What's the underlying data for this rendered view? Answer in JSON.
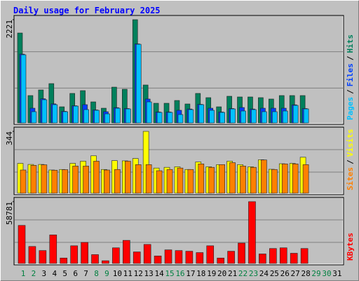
{
  "chart_data": {
    "type": "bar",
    "title": "Daily usage for February 2025",
    "categories": [
      "1",
      "2",
      "3",
      "4",
      "5",
      "6",
      "7",
      "8",
      "9",
      "10",
      "11",
      "12",
      "13",
      "14",
      "15",
      "16",
      "17",
      "18",
      "19",
      "20",
      "21",
      "22",
      "23",
      "24",
      "25",
      "26",
      "27",
      "28",
      "29",
      "30",
      "31"
    ],
    "category_colors": [
      "#008040",
      "#008040",
      "#000000",
      "#000000",
      "#000000",
      "#000000",
      "#000000",
      "#008040",
      "#008040",
      "#000000",
      "#000000",
      "#000000",
      "#000000",
      "#000000",
      "#008040",
      "#008040",
      "#000000",
      "#000000",
      "#000000",
      "#000000",
      "#000000",
      "#008040",
      "#008040",
      "#000000",
      "#000000",
      "#000000",
      "#000000",
      "#000000",
      "#008040",
      "#008040",
      "#000000"
    ],
    "legend_separator": "/",
    "grid": true,
    "panels": [
      {
        "ylim": [
          0,
          2221
        ],
        "yticks": [
          2221
        ],
        "series": [
          {
            "name": "Hits",
            "color": "#00805c",
            "values": [
              1934,
              589,
              710,
              846,
              347,
              635,
              695,
              453,
              317,
              770,
              725,
              2221,
              816,
              423,
              423,
              483,
              408,
              635,
              544,
              347,
              574,
              559,
              559,
              544,
              514,
              589,
              589,
              589,
              null,
              null,
              null
            ]
          },
          {
            "name": "Files",
            "color": "#0040ff",
            "values": [
              1480,
              317,
              520,
              410,
              250,
              370,
              393,
              280,
              242,
              330,
              310,
              1700,
              514,
              235,
              235,
              272,
              300,
              400,
              317,
              235,
              310,
              332,
              300,
              317,
              317,
              317,
              390,
              310,
              null,
              null,
              null
            ]
          },
          {
            "name": "Pages",
            "color": "#00c0ff",
            "values": [
              1466,
              242,
              499,
              393,
              242,
              363,
              287,
              272,
              196,
              317,
              302,
              1692,
              453,
              227,
              227,
              181,
              287,
              393,
              272,
              227,
              302,
              257,
              287,
              242,
              242,
              257,
              378,
              302,
              null,
              null,
              null
            ]
          }
        ]
      },
      {
        "ylim": [
          0,
          344
        ],
        "yticks": [
          344
        ],
        "series": [
          {
            "name": "Visits",
            "color": "#ffff00",
            "values": [
              166,
              160,
              160,
              129,
              132,
              166,
              178,
              208,
              132,
              181,
              180,
              193,
              344,
              140,
              144,
              147,
              132,
              174,
              147,
              159,
              178,
              159,
              147,
              186,
              133,
              164,
              166,
              200,
              null,
              null,
              null
            ]
          },
          {
            "name": "Sites",
            "color": "#ff8000",
            "values": [
              129,
              155,
              158,
              128,
              131,
              151,
              151,
              178,
              129,
              132,
              178,
              159,
              159,
              125,
              132,
              140,
              132,
              163,
              144,
              159,
              170,
              151,
              144,
              185,
              132,
              163,
              163,
              159,
              null,
              null,
              null
            ]
          }
        ]
      },
      {
        "ylim": [
          0,
          58781
        ],
        "yticks": [
          58781
        ],
        "series": [
          {
            "name": "KBytes",
            "color": "#ff0000",
            "values": [
              36173,
              16149,
              12273,
              27130,
              5168,
              16795,
              20025,
              8397,
              2584,
              14857,
              21963,
              10981,
              18087,
              7105,
              12919,
              12273,
              11627,
              10335,
              16795,
              5168,
              11627,
              19379,
              58781,
              9043,
              14211,
              14857,
              9689,
              14211,
              null,
              null,
              null
            ]
          }
        ]
      }
    ]
  }
}
